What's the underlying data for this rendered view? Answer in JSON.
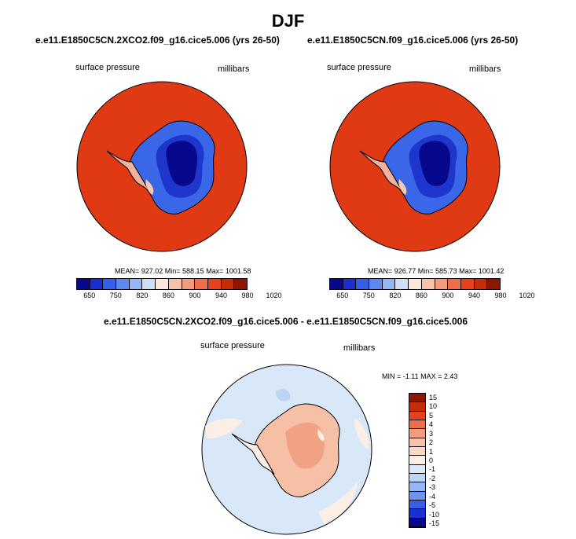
{
  "title": "DJF",
  "panel1": {
    "title": "e.e11.E1850C5CN.2XCO2.f09_g16.cice5.006 (yrs 26-50)",
    "left_label": "surface pressure",
    "right_label": "millibars",
    "stats": "MEAN= 927.02  Min= 588.15  Max= 1001.58"
  },
  "panel2": {
    "title": "e.e11.E1850C5CN.f09_g16.cice5.006 (yrs 26-50)",
    "left_label": "surface pressure",
    "right_label": "millibars",
    "stats": "MEAN= 926.77  Min= 585.73  Max= 1001.42"
  },
  "panel3": {
    "title": "e.e11.E1850C5CN.2XCO2.f09_g16.cice5.006 - e.e11.E1850C5CN.f09_g16.cice5.006",
    "left_label": "surface pressure",
    "right_label": "millibars",
    "stats": "MIN =  -1.11 MAX =   2.43"
  },
  "colorbar_top": {
    "tick_labels": [
      "650",
      "750",
      "820",
      "860",
      "900",
      "940",
      "980",
      "1020"
    ],
    "colors": [
      "#08088c",
      "#1b2fd0",
      "#3560e6",
      "#5d88ee",
      "#93b6f4",
      "#cde0f7",
      "#fbe7dc",
      "#f6c2ab",
      "#f29c7e",
      "#ec6e4b",
      "#e5421d",
      "#c42d0c",
      "#8e1600"
    ]
  },
  "colorbar_diff": {
    "tick_labels": [
      "15",
      "10",
      "5",
      "4",
      "3",
      "2",
      "1",
      "0",
      "-1",
      "-2",
      "-3",
      "-4",
      "-5",
      "-10",
      "-15"
    ],
    "colors": [
      "#8e1600",
      "#c42d0c",
      "#e5421d",
      "#ec6e4b",
      "#f29c7e",
      "#f6c2ab",
      "#f9d8c5",
      "#fbeee4",
      "#dae8f9",
      "#bdd4f5",
      "#93b6f4",
      "#6d94ee",
      "#3560e6",
      "#1b2fd0",
      "#08088c"
    ]
  },
  "map_colors": {
    "ocean_high": "#e03a14",
    "diff_ocean": "#d8e8f9",
    "diff_land": "#f6c0a6"
  }
}
